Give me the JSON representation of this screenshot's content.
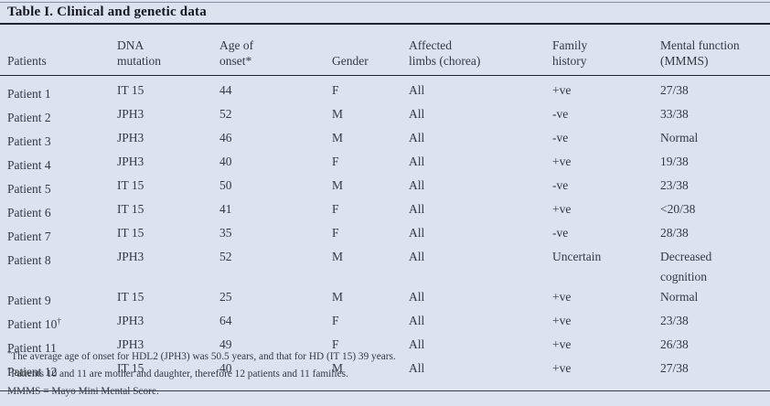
{
  "colors": {
    "background": "#dce3ee",
    "text": "#343841",
    "title": "#14171e",
    "rule": "#20242e"
  },
  "table": {
    "title": "Table I. Clinical and genetic data",
    "columns": [
      {
        "line1": "",
        "line2": "Patients"
      },
      {
        "line1": "DNA",
        "line2": "mutation"
      },
      {
        "line1": "Age of",
        "line2": "onset*"
      },
      {
        "line1": "",
        "line2": "Gender"
      },
      {
        "line1": "Affected",
        "line2": "limbs (chorea)"
      },
      {
        "line1": "Family",
        "line2": "history"
      },
      {
        "line1": "Mental function",
        "line2": "(MMMS)"
      }
    ],
    "rows": [
      {
        "patient": "Patient 1",
        "marker": "",
        "dna": "IT 15",
        "age": "44",
        "gender": "F",
        "limbs": "All",
        "family": "+ve",
        "mental": "27/38"
      },
      {
        "patient": "Patient 2",
        "marker": "",
        "dna": "JPH3",
        "age": "52",
        "gender": "M",
        "limbs": "All",
        "family": "-ve",
        "mental": "33/38"
      },
      {
        "patient": "Patient 3",
        "marker": "",
        "dna": "JPH3",
        "age": "46",
        "gender": "M",
        "limbs": "All",
        "family": "-ve",
        "mental": "Normal"
      },
      {
        "patient": "Patient 4",
        "marker": "",
        "dna": "JPH3",
        "age": "40",
        "gender": "F",
        "limbs": "All",
        "family": "+ve",
        "mental": "19/38"
      },
      {
        "patient": "Patient 5",
        "marker": "",
        "dna": "IT 15",
        "age": "50",
        "gender": "M",
        "limbs": "All",
        "family": "-ve",
        "mental": "23/38"
      },
      {
        "patient": "Patient 6",
        "marker": "",
        "dna": "IT 15",
        "age": "41",
        "gender": "F",
        "limbs": "All",
        "family": "+ve",
        "mental": "<20/38"
      },
      {
        "patient": "Patient 7",
        "marker": "",
        "dna": "IT 15",
        "age": "35",
        "gender": "F",
        "limbs": "All",
        "family": "-ve",
        "mental": "28/38"
      },
      {
        "patient": "Patient 8",
        "marker": "",
        "dna": "JPH3",
        "age": "52",
        "gender": "M",
        "limbs": "All",
        "family": "Uncertain",
        "mental": "Decreased cognition"
      },
      {
        "patient": "Patient 9",
        "marker": "",
        "dna": "IT 15",
        "age": "25",
        "gender": "M",
        "limbs": "All",
        "family": "+ve",
        "mental": "Normal"
      },
      {
        "patient": "Patient 10",
        "marker": "†",
        "dna": "JPH3",
        "age": "64",
        "gender": "F",
        "limbs": "All",
        "family": "+ve",
        "mental": "23/38"
      },
      {
        "patient": "Patient 11",
        "marker": "",
        "dna": "JPH3",
        "age": "49",
        "gender": "F",
        "limbs": "All",
        "family": "+ve",
        "mental": "26/38"
      },
      {
        "patient": "Patient 12",
        "marker": "",
        "dna": "IT 15",
        "age": "40",
        "gender": "M",
        "limbs": "All",
        "family": "+ve",
        "mental": "27/38"
      }
    ],
    "footnotes": [
      {
        "prefix": "*",
        "text": "The average age of onset for HDL2 (JPH3) was 50.5 years, and that for HD (IT 15) 39 years."
      },
      {
        "prefix": "†",
        "text": "Patients 10 and 11 are mother and daughter, therefore 12 patients and 11 families."
      },
      {
        "prefix": "",
        "text": "MMMS = Mayo Mini Mental Score."
      }
    ]
  }
}
